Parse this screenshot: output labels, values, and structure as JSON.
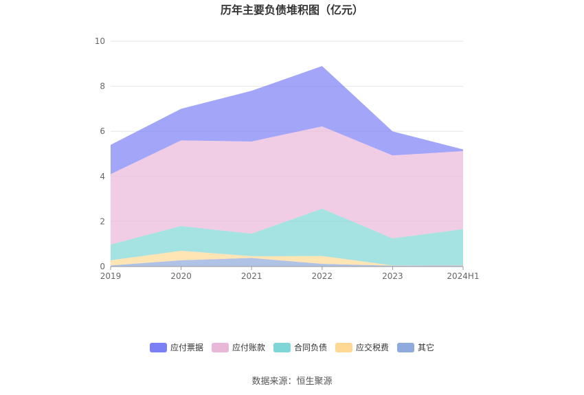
{
  "chart_data": {
    "type": "area",
    "stacked": true,
    "title": "历年主要负债堆积图（亿元）",
    "categories": [
      "2019",
      "2020",
      "2021",
      "2022",
      "2023",
      "2024H1"
    ],
    "ylim": [
      0,
      10
    ],
    "yticks": [
      0,
      2,
      4,
      6,
      8,
      10
    ],
    "grid": true,
    "legend_position": "bottom",
    "series": [
      {
        "name": "其它",
        "color": "#8faadc",
        "values": [
          0.05,
          0.28,
          0.38,
          0.12,
          0.04,
          0.05
        ]
      },
      {
        "name": "应交税费",
        "color": "#ffd994",
        "values": [
          0.23,
          0.42,
          0.08,
          0.35,
          0.01,
          0.01
        ]
      },
      {
        "name": "合同负债",
        "color": "#7fd6d6",
        "values": [
          0.7,
          1.1,
          1.0,
          2.1,
          1.2,
          1.6
        ]
      },
      {
        "name": "应付账款",
        "color": "#e9b8d9",
        "values": [
          3.12,
          3.8,
          4.09,
          3.65,
          3.68,
          3.46
        ]
      },
      {
        "name": "应付票据",
        "color": "#7b7ff5",
        "values": [
          1.3,
          1.4,
          2.25,
          2.68,
          1.07,
          0.08
        ]
      }
    ]
  },
  "legend_order": [
    "应付票据",
    "应付账款",
    "合同负债",
    "应交税费",
    "其它"
  ],
  "source": "数据来源：恒生聚源"
}
